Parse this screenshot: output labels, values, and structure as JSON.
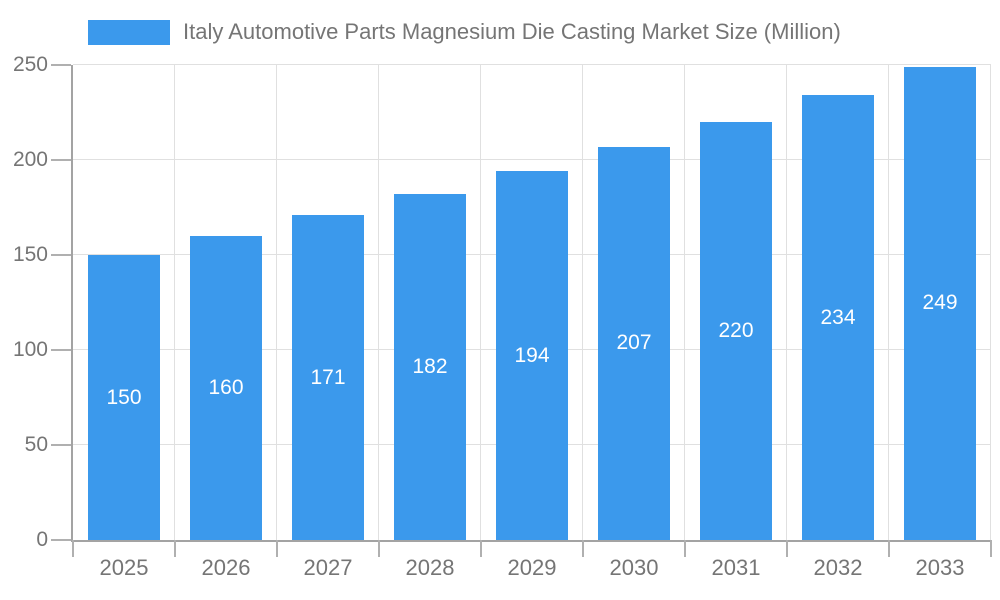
{
  "chart_data": {
    "type": "bar",
    "title": "Italy Automotive Parts Magnesium Die Casting Market Size (Million)",
    "categories": [
      "2025",
      "2026",
      "2027",
      "2028",
      "2029",
      "2030",
      "2031",
      "2032",
      "2033"
    ],
    "values": [
      150,
      160,
      171,
      182,
      194,
      207,
      220,
      234,
      249
    ],
    "xlabel": "",
    "ylabel": "",
    "ylim": [
      0,
      250
    ],
    "yticks": [
      0,
      50,
      100,
      150,
      200,
      250
    ],
    "grid": true,
    "legend_position": "top",
    "bar_labels_inside": true,
    "colors": {
      "bar": "#3b99ec",
      "axis": "#a3a3a3",
      "tick": "#b0b0b0",
      "grid": "#e0e0e0",
      "text": "#757575",
      "bar_label": "#ffffff",
      "background": "#ffffff"
    }
  }
}
